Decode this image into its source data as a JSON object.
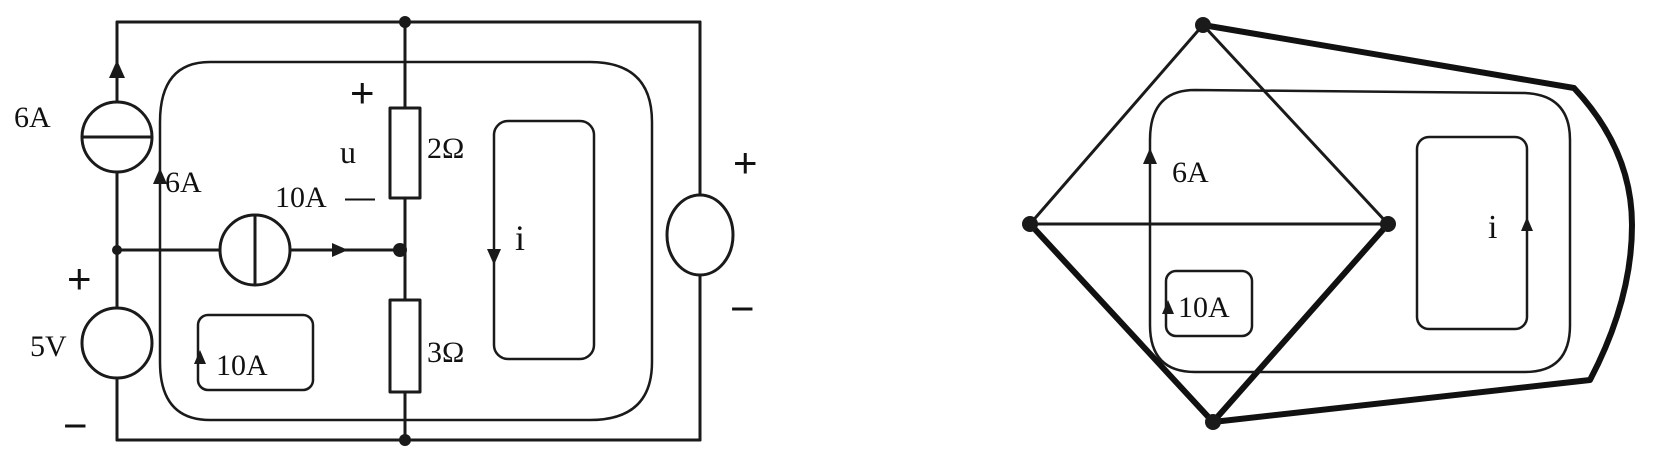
{
  "left_circuit": {
    "labels": {
      "source_current_top": "6A",
      "branch_current": "6A",
      "middle_source": "10A",
      "voltage_source": "5V",
      "loop_current": "10A",
      "voltage_u": "u",
      "resistor_top": "2Ω",
      "resistor_bottom": "3Ω",
      "mesh_current": "i"
    },
    "signs": {
      "plus_5v": "+",
      "minus_5v": "−",
      "plus_u": "+",
      "minus_u": "—",
      "plus_right": "+",
      "minus_right": "−"
    }
  },
  "right_graph": {
    "labels": {
      "current_6a": "6A",
      "current_10a": "10A",
      "mesh_current": "i"
    }
  }
}
